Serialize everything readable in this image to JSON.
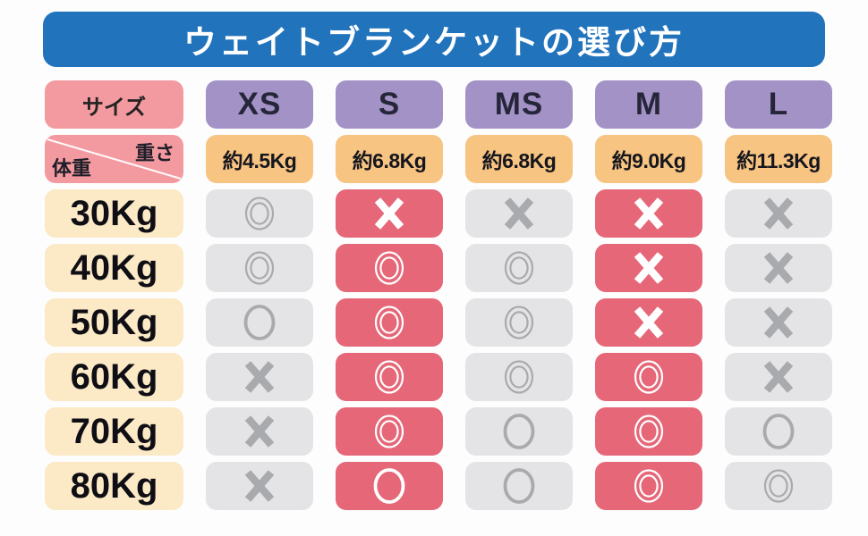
{
  "title": "ウェイトブランケットの選び方",
  "colors": {
    "title_blue": "#2173BC",
    "header_pink": "#F39AA0",
    "header_purple": "#A392C6",
    "header_orange": "#F7C481",
    "row_label_cream": "#FCE9C6",
    "cell_gray": "#E4E4E6",
    "cell_highlight_red": "#E56778",
    "symbol_gray": "#A9AAAD",
    "symbol_white": "#FFFFFF"
  },
  "chart_data": {
    "type": "table",
    "title": "ウェイトブランケットの選び方",
    "corner_label": "サイズ",
    "column_header": "重さ",
    "row_header": "体重",
    "columns": [
      "XS",
      "S",
      "MS",
      "M",
      "L"
    ],
    "column_weights": [
      "約4.5Kg",
      "約6.8Kg",
      "約6.8Kg",
      "約9.0Kg",
      "約11.3Kg"
    ],
    "highlighted_columns": [
      "S",
      "M"
    ],
    "highlighted_column_indices": [
      1,
      3
    ],
    "symbol_names": {
      "double-circle": "◎",
      "circle": "○",
      "cross": "×"
    },
    "rows": [
      {
        "body_weight": "30Kg",
        "ratings": [
          "double-circle",
          "cross",
          "cross",
          "cross",
          "cross"
        ]
      },
      {
        "body_weight": "40Kg",
        "ratings": [
          "double-circle",
          "double-circle",
          "double-circle",
          "cross",
          "cross"
        ]
      },
      {
        "body_weight": "50Kg",
        "ratings": [
          "circle",
          "double-circle",
          "double-circle",
          "cross",
          "cross"
        ]
      },
      {
        "body_weight": "60Kg",
        "ratings": [
          "cross",
          "double-circle",
          "double-circle",
          "double-circle",
          "cross"
        ]
      },
      {
        "body_weight": "70Kg",
        "ratings": [
          "cross",
          "double-circle",
          "circle",
          "double-circle",
          "circle"
        ]
      },
      {
        "body_weight": "80Kg",
        "ratings": [
          "cross",
          "circle",
          "circle",
          "double-circle",
          "double-circle"
        ]
      }
    ]
  }
}
